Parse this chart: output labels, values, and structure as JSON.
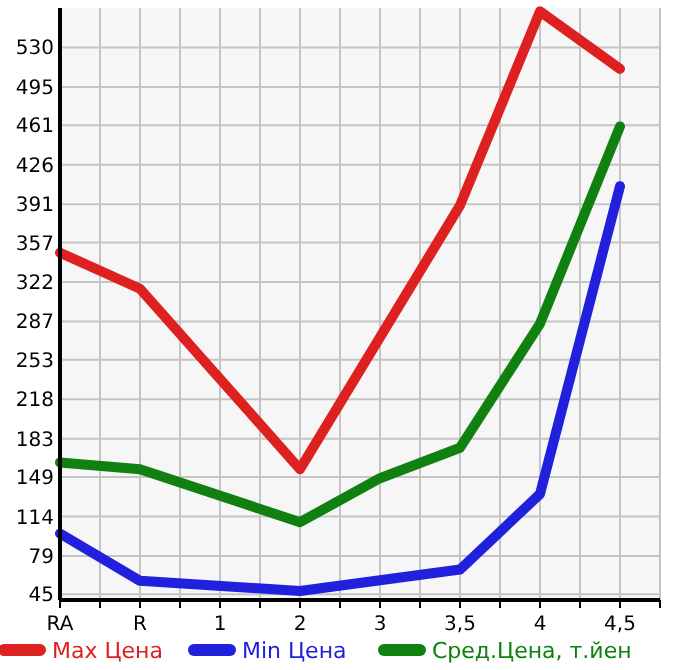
{
  "chart_data": {
    "type": "line",
    "categories": [
      "RA",
      "R",
      "1",
      "2",
      "3",
      "3,5",
      "4",
      "4,5"
    ],
    "ylim": [
      40,
      565
    ],
    "yticks": [
      45,
      79,
      114,
      149,
      183,
      218,
      253,
      287,
      322,
      357,
      391,
      426,
      461,
      495,
      530
    ],
    "grid": true,
    "legend": "bottom",
    "marker": "none",
    "line_style": "solid",
    "series": [
      {
        "name": "Max Цена",
        "color": "#dd2020",
        "values": [
          348,
          316,
          null,
          156,
          null,
          390,
          562,
          511
        ]
      },
      {
        "name": "Min Цена",
        "color": "#2020dd",
        "values": [
          99,
          57,
          null,
          48,
          null,
          67,
          134,
          407
        ]
      },
      {
        "name": "Сред.Цена, т.йен",
        "color": "#108010",
        "values": [
          162,
          156,
          null,
          109,
          148,
          175,
          285,
          460
        ]
      }
    ]
  }
}
